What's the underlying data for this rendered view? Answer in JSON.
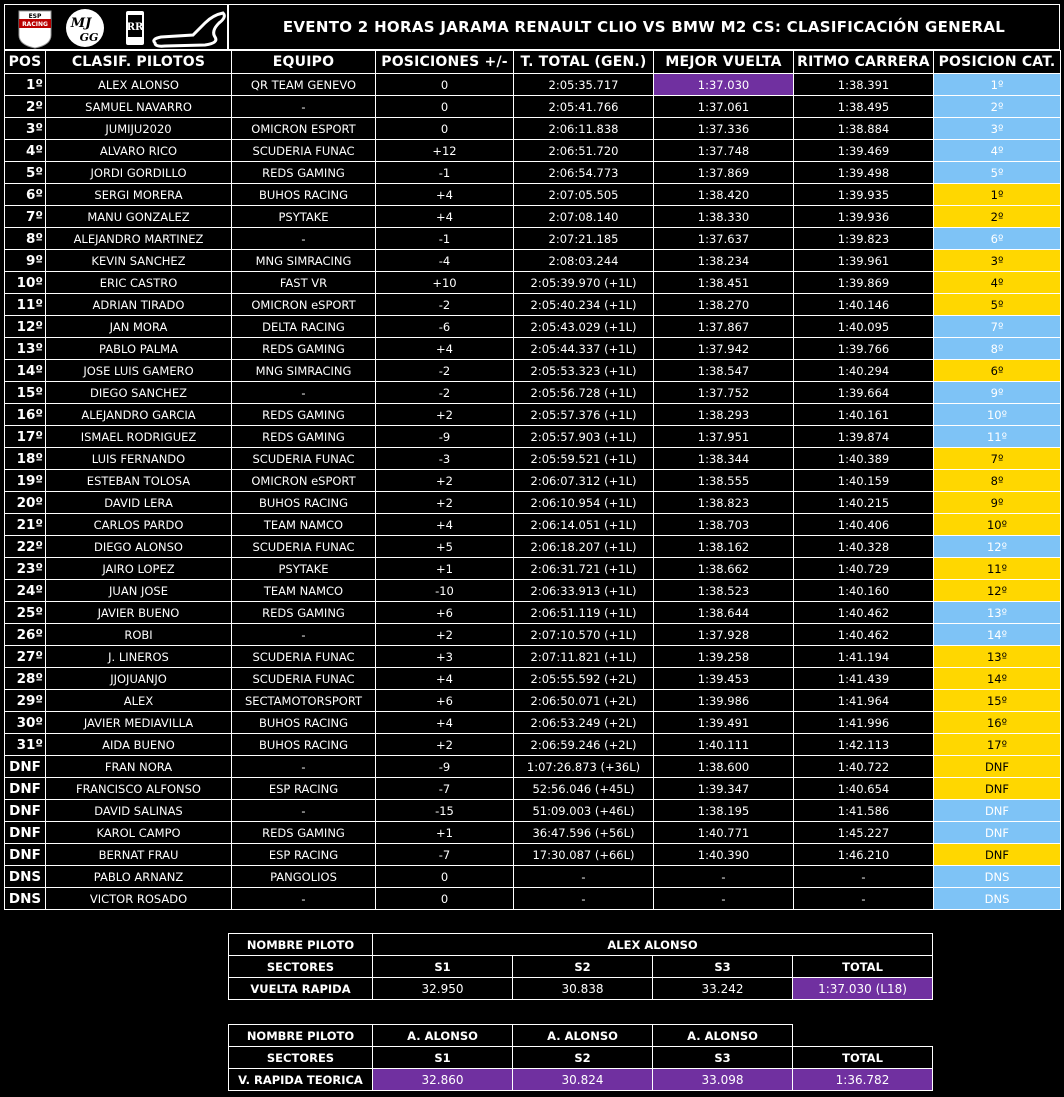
{
  "title": "EVENTO 2 HORAS JARAMA RENAULT CLIO VS BMW M2 CS: CLASIFICACIÓN GENERAL",
  "logos": [
    {
      "name": "esp-racing-logo",
      "text": "ESP RACING"
    },
    {
      "name": "mj-gg-logo",
      "text": "MJ GG"
    },
    {
      "name": "rolls-royce-logo",
      "text": "RR"
    },
    {
      "name": "jarama-circuit-logo"
    }
  ],
  "colors": {
    "purple": "#7030a0",
    "blue": "#7ec3f6",
    "yellow": "#ffd700"
  },
  "headers": [
    "POS",
    "CLASIF. PILOTOS",
    "EQUIPO",
    "POSICIONES +/-",
    "T. TOTAL (GEN.)",
    "MEJOR VUELTA",
    "RITMO CARRERA",
    "POSICION CAT."
  ],
  "rows": [
    {
      "pos": "1º",
      "driver": "ALEX ALONSO",
      "team": "QR TEAM GENEVO",
      "delta": "0",
      "total": "2:05:35.717",
      "best": "1:37.030",
      "pace": "1:38.391",
      "cat": "1º",
      "cat_color": "blue",
      "best_highlight": true
    },
    {
      "pos": "2º",
      "driver": "SAMUEL NAVARRO",
      "team": "-",
      "delta": "0",
      "total": "2:05:41.766",
      "best": "1:37.061",
      "pace": "1:38.495",
      "cat": "2º",
      "cat_color": "blue"
    },
    {
      "pos": "3º",
      "driver": "JUMIJU2020",
      "team": "OMICRON ESPORT",
      "delta": "0",
      "total": "2:06:11.838",
      "best": "1:37.336",
      "pace": "1:38.884",
      "cat": "3º",
      "cat_color": "blue"
    },
    {
      "pos": "4º",
      "driver": "ALVARO RICO",
      "team": "SCUDERIA FUNAC",
      "delta": "+12",
      "total": "2:06:51.720",
      "best": "1:37.748",
      "pace": "1:39.469",
      "cat": "4º",
      "cat_color": "blue"
    },
    {
      "pos": "5º",
      "driver": "JORDI GORDILLO",
      "team": "REDS GAMING",
      "delta": "-1",
      "total": "2:06:54.773",
      "best": "1:37.869",
      "pace": "1:39.498",
      "cat": "5º",
      "cat_color": "blue"
    },
    {
      "pos": "6º",
      "driver": "SERGI MORERA",
      "team": "BUHOS RACING",
      "delta": "+4",
      "total": "2:07:05.505",
      "best": "1:38.420",
      "pace": "1:39.935",
      "cat": "1º",
      "cat_color": "yellow"
    },
    {
      "pos": "7º",
      "driver": "MANU GONZALEZ",
      "team": "PSYTAKE",
      "delta": "+4",
      "total": "2:07:08.140",
      "best": "1:38.330",
      "pace": "1:39.936",
      "cat": "2º",
      "cat_color": "yellow"
    },
    {
      "pos": "8º",
      "driver": "ALEJANDRO MARTINEZ",
      "team": "-",
      "delta": "-1",
      "total": "2:07:21.185",
      "best": "1:37.637",
      "pace": "1:39.823",
      "cat": "6º",
      "cat_color": "blue"
    },
    {
      "pos": "9º",
      "driver": "KEVIN SANCHEZ",
      "team": "MNG SIMRACING",
      "delta": "-4",
      "total": "2:08:03.244",
      "best": "1:38.234",
      "pace": "1:39.961",
      "cat": "3º",
      "cat_color": "yellow"
    },
    {
      "pos": "10º",
      "driver": "ERIC CASTRO",
      "team": "FAST VR",
      "delta": "+10",
      "total": "2:05:39.970 (+1L)",
      "best": "1:38.451",
      "pace": "1:39.869",
      "cat": "4º",
      "cat_color": "yellow"
    },
    {
      "pos": "11º",
      "driver": "ADRIAN TIRADO",
      "team": "OMICRON eSPORT",
      "delta": "-2",
      "total": "2:05:40.234 (+1L)",
      "best": "1:38.270",
      "pace": "1:40.146",
      "cat": "5º",
      "cat_color": "yellow"
    },
    {
      "pos": "12º",
      "driver": "JAN MORA",
      "team": "DELTA RACING",
      "delta": "-6",
      "total": "2:05:43.029 (+1L)",
      "best": "1:37.867",
      "pace": "1:40.095",
      "cat": "7º",
      "cat_color": "blue"
    },
    {
      "pos": "13º",
      "driver": "PABLO PALMA",
      "team": "REDS GAMING",
      "delta": "+4",
      "total": "2:05:44.337 (+1L)",
      "best": "1:37.942",
      "pace": "1:39.766",
      "cat": "8º",
      "cat_color": "blue"
    },
    {
      "pos": "14º",
      "driver": "JOSE LUIS GAMERO",
      "team": "MNG SIMRACING",
      "delta": "-2",
      "total": "2:05:53.323 (+1L)",
      "best": "1:38.547",
      "pace": "1:40.294",
      "cat": "6º",
      "cat_color": "yellow"
    },
    {
      "pos": "15º",
      "driver": "DIEGO SANCHEZ",
      "team": "-",
      "delta": "-2",
      "total": "2:05:56.728 (+1L)",
      "best": "1:37.752",
      "pace": "1:39.664",
      "cat": "9º",
      "cat_color": "blue"
    },
    {
      "pos": "16º",
      "driver": "ALEJANDRO GARCIA",
      "team": "REDS GAMING",
      "delta": "+2",
      "total": "2:05:57.376 (+1L)",
      "best": "1:38.293",
      "pace": "1:40.161",
      "cat": "10º",
      "cat_color": "blue"
    },
    {
      "pos": "17º",
      "driver": "ISMAEL RODRIGUEZ",
      "team": "REDS GAMING",
      "delta": "-9",
      "total": "2:05:57.903 (+1L)",
      "best": "1:37.951",
      "pace": "1:39.874",
      "cat": "11º",
      "cat_color": "blue"
    },
    {
      "pos": "18º",
      "driver": "LUIS FERNANDO",
      "team": "SCUDERIA FUNAC",
      "delta": "-3",
      "total": "2:05:59.521 (+1L)",
      "best": "1:38.344",
      "pace": "1:40.389",
      "cat": "7º",
      "cat_color": "yellow"
    },
    {
      "pos": "19º",
      "driver": "ESTEBAN TOLOSA",
      "team": "OMICRON eSPORT",
      "delta": "+2",
      "total": "2:06:07.312 (+1L)",
      "best": "1:38.555",
      "pace": "1:40.159",
      "cat": "8º",
      "cat_color": "yellow"
    },
    {
      "pos": "20º",
      "driver": "DAVID LERA",
      "team": "BUHOS RACING",
      "delta": "+2",
      "total": "2:06:10.954 (+1L)",
      "best": "1:38.823",
      "pace": "1:40.215",
      "cat": "9º",
      "cat_color": "yellow"
    },
    {
      "pos": "21º",
      "driver": "CARLOS PARDO",
      "team": "TEAM NAMCO",
      "delta": "+4",
      "total": "2:06:14.051 (+1L)",
      "best": "1:38.703",
      "pace": "1:40.406",
      "cat": "10º",
      "cat_color": "yellow"
    },
    {
      "pos": "22º",
      "driver": "DIEGO ALONSO",
      "team": "SCUDERIA FUNAC",
      "delta": "+5",
      "total": "2:06:18.207 (+1L)",
      "best": "1:38.162",
      "pace": "1:40.328",
      "cat": "12º",
      "cat_color": "blue"
    },
    {
      "pos": "23º",
      "driver": "JAIRO LOPEZ",
      "team": "PSYTAKE",
      "delta": "+1",
      "total": "2:06:31.721 (+1L)",
      "best": "1:38.662",
      "pace": "1:40.729",
      "cat": "11º",
      "cat_color": "yellow"
    },
    {
      "pos": "24º",
      "driver": "JUAN JOSE",
      "team": "TEAM NAMCO",
      "delta": "-10",
      "total": "2:06:33.913 (+1L)",
      "best": "1:38.523",
      "pace": "1:40.160",
      "cat": "12º",
      "cat_color": "yellow"
    },
    {
      "pos": "25º",
      "driver": "JAVIER BUENO",
      "team": "REDS GAMING",
      "delta": "+6",
      "total": "2:06:51.119 (+1L)",
      "best": "1:38.644",
      "pace": "1:40.462",
      "cat": "13º",
      "cat_color": "blue"
    },
    {
      "pos": "26º",
      "driver": "ROBI",
      "team": "-",
      "delta": "+2",
      "total": "2:07:10.570 (+1L)",
      "best": "1:37.928",
      "pace": "1:40.462",
      "cat": "14º",
      "cat_color": "blue"
    },
    {
      "pos": "27º",
      "driver": "J. LINEROS",
      "team": "SCUDERIA FUNAC",
      "delta": "+3",
      "total": "2:07:11.821 (+1L)",
      "best": "1:39.258",
      "pace": "1:41.194",
      "cat": "13º",
      "cat_color": "yellow"
    },
    {
      "pos": "28º",
      "driver": "JJOJUANJO",
      "team": "SCUDERIA FUNAC",
      "delta": "+4",
      "total": "2:05:55.592 (+2L)",
      "best": "1:39.453",
      "pace": "1:41.439",
      "cat": "14º",
      "cat_color": "yellow"
    },
    {
      "pos": "29º",
      "driver": "ALEX",
      "team": "SECTAMOTORSPORT",
      "delta": "+6",
      "total": "2:06:50.071 (+2L)",
      "best": "1:39.986",
      "pace": "1:41.964",
      "cat": "15º",
      "cat_color": "yellow"
    },
    {
      "pos": "30º",
      "driver": "JAVIER MEDIAVILLA",
      "team": "BUHOS RACING",
      "delta": "+4",
      "total": "2:06:53.249 (+2L)",
      "best": "1:39.491",
      "pace": "1:41.996",
      "cat": "16º",
      "cat_color": "yellow"
    },
    {
      "pos": "31º",
      "driver": "AIDA BUENO",
      "team": "BUHOS RACING",
      "delta": "+2",
      "total": "2:06:59.246 (+2L)",
      "best": "1:40.111",
      "pace": "1:42.113",
      "cat": "17º",
      "cat_color": "yellow"
    },
    {
      "pos": "DNF",
      "driver": "FRAN NORA",
      "team": "-",
      "delta": "-9",
      "total": "1:07:26.873 (+36L)",
      "best": "1:38.600",
      "pace": "1:40.722",
      "cat": "DNF",
      "cat_color": "yellow"
    },
    {
      "pos": "DNF",
      "driver": "FRANCISCO ALFONSO",
      "team": "ESP RACING",
      "delta": "-7",
      "total": "52:56.046 (+45L)",
      "best": "1:39.347",
      "pace": "1:40.654",
      "cat": "DNF",
      "cat_color": "yellow"
    },
    {
      "pos": "DNF",
      "driver": "DAVID SALINAS",
      "team": "-",
      "delta": "-15",
      "total": "51:09.003 (+46L)",
      "best": "1:38.195",
      "pace": "1:41.586",
      "cat": "DNF",
      "cat_color": "blue"
    },
    {
      "pos": "DNF",
      "driver": "KAROL CAMPO",
      "team": "REDS GAMING",
      "delta": "+1",
      "total": "36:47.596 (+56L)",
      "best": "1:40.771",
      "pace": "1:45.227",
      "cat": "DNF",
      "cat_color": "blue"
    },
    {
      "pos": "DNF",
      "driver": "BERNAT FRAU",
      "team": "ESP RACING",
      "delta": "-7",
      "total": "17:30.087 (+66L)",
      "best": "1:40.390",
      "pace": "1:46.210",
      "cat": "DNF",
      "cat_color": "yellow"
    },
    {
      "pos": "DNS",
      "driver": "PABLO ARNANZ",
      "team": "PANGOLIOS",
      "delta": "0",
      "total": "-",
      "best": "-",
      "pace": "-",
      "cat": "DNS",
      "cat_color": "blue"
    },
    {
      "pos": "DNS",
      "driver": "VICTOR ROSADO",
      "team": "-",
      "delta": "0",
      "total": "-",
      "best": "-",
      "pace": "-",
      "cat": "DNS",
      "cat_color": "blue"
    }
  ],
  "fastest_lap": {
    "driver_label": "NOMBRE PILOTO",
    "driver": "ALEX ALONSO",
    "sectors_label": "SECTORES",
    "sector_headers": [
      "S1",
      "S2",
      "S3",
      "TOTAL"
    ],
    "row_label": "VUELTA RAPIDA",
    "values": [
      "32.950",
      "30.838",
      "33.242",
      "1:37.030 (L18)"
    ]
  },
  "theoretical_lap": {
    "driver_label": "NOMBRE PILOTO",
    "drivers": [
      "A. ALONSO",
      "A. ALONSO",
      "A. ALONSO"
    ],
    "sectors_label": "SECTORES",
    "sector_headers": [
      "S1",
      "S2",
      "S3",
      "TOTAL"
    ],
    "row_label": "V. RAPIDA TEORICA",
    "values": [
      "32.860",
      "30.824",
      "33.098",
      "1:36.782"
    ]
  }
}
